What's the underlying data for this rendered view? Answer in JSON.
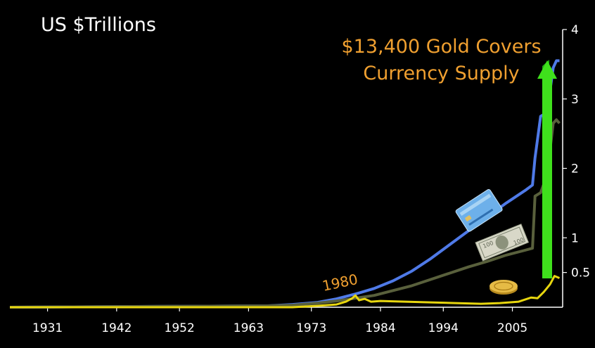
{
  "chart_data": {
    "type": "line",
    "title": "US $Trillions",
    "annotation_lines": [
      "$13,400 Gold Covers",
      "Currency Supply"
    ],
    "marker_label": "1980",
    "x_ticks": [
      "1931",
      "1942",
      "1952",
      "1963",
      "1973",
      "1984",
      "1994",
      "2005"
    ],
    "y_ticks": [
      "4",
      "3",
      "2",
      "1",
      "0.5"
    ],
    "ylim": [
      0,
      4
    ],
    "xlim": [
      1925,
      2013
    ],
    "series": [
      {
        "color": "#4f7ae8",
        "x": [
          1925,
          1966,
          1970,
          1974,
          1977,
          1980,
          1983,
          1986,
          1989,
          1992,
          1995,
          1998,
          2001,
          2004,
          2007,
          2008.2,
          2008.6,
          2009.5,
          2010.5,
          2011.5,
          2012,
          2012.5
        ],
        "y": [
          0.0,
          0.02,
          0.04,
          0.07,
          0.12,
          0.19,
          0.27,
          0.38,
          0.52,
          0.7,
          0.9,
          1.1,
          1.3,
          1.5,
          1.68,
          1.76,
          2.15,
          2.75,
          2.8,
          3.45,
          3.55,
          3.55
        ]
      },
      {
        "color": "#59603c",
        "x": [
          1925,
          1966,
          1970,
          1974,
          1977,
          1980,
          1983,
          1986,
          1989,
          1992,
          1995,
          1998,
          2001,
          2004,
          2007,
          2008.2,
          2008.6,
          2009.5,
          2010.5,
          2011.5,
          2012,
          2012.5
        ],
        "y": [
          0.0,
          0.02,
          0.03,
          0.06,
          0.09,
          0.13,
          0.17,
          0.24,
          0.31,
          0.4,
          0.49,
          0.58,
          0.66,
          0.75,
          0.82,
          0.85,
          1.6,
          1.65,
          1.9,
          2.65,
          2.7,
          2.65
        ]
      },
      {
        "color": "#e7d60f",
        "x": [
          1925,
          1970,
          1974,
          1977,
          1978.5,
          1979.5,
          1980,
          1980.6,
          1981.5,
          1982.5,
          1984,
          1988,
          1992,
          1996,
          2000,
          2003,
          2006,
          2008,
          2009,
          2010,
          2011,
          2011.7,
          2012.5
        ],
        "y": [
          0.0,
          0.0,
          0.02,
          0.04,
          0.08,
          0.13,
          0.17,
          0.1,
          0.12,
          0.08,
          0.09,
          0.08,
          0.07,
          0.06,
          0.05,
          0.06,
          0.08,
          0.14,
          0.13,
          0.22,
          0.33,
          0.45,
          0.42
        ]
      }
    ]
  }
}
